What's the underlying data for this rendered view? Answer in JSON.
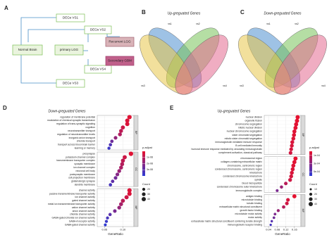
{
  "diagram": {
    "panel": "A",
    "nodes": [
      "Normal Brain",
      "primary LGG",
      "DEGs VS1",
      "DEGs VS2",
      "Recurrent LGG",
      "Secondary GBM",
      "DEGs VS4",
      "DEGs VS3"
    ]
  },
  "venns": [
    {
      "panel": "B",
      "title": "Up-greguated Genes",
      "sets": [
        "vs1",
        "vs2",
        "vs3",
        "vs4"
      ]
    },
    {
      "panel": "C",
      "title": "Down-greguated Genes",
      "sets": [
        "vs1",
        "vs2",
        "vs3",
        "vs4"
      ]
    }
  ],
  "chart_data": [
    {
      "type": "dotplot",
      "panel": "D",
      "title": "Down-greguated Genes",
      "x_label": "GeneRatio",
      "xlim": [
        0.03,
        0.13
      ],
      "xticks": [
        {
          "value": 0.05,
          "label": "0.05"
        },
        {
          "value": 0.1,
          "label": "0.10"
        }
      ],
      "color_legend_title": "p.adjust",
      "plim": [
        0,
        4e-08
      ],
      "pticks": [
        {
          "value": 1e-08,
          "label": "1e-08"
        },
        {
          "value": 2e-08,
          "label": "2e-08"
        },
        {
          "value": 3e-08,
          "label": "3e-08"
        }
      ],
      "color_low": "#e8112d",
      "color_high": "#2b3bd6",
      "size_legend_title": "Count",
      "size_ticks": [
        20,
        30,
        40
      ],
      "size_max": 45,
      "facets": [
        {
          "name": "BP",
          "categories": [
            "regulation of membrane potential",
            "modulation of chemical synaptic transmission",
            "regulation of trans-synaptic signaling",
            "cognition",
            "neurotransmitter transport",
            "regulation of neurotransmitter levels",
            "inorganic anion transport",
            "chloride transport",
            "transport across blood-brain barrier",
            "learning or memory"
          ],
          "values": [
            0.118,
            0.112,
            0.112,
            0.1,
            0.095,
            0.092,
            0.08,
            0.07,
            0.066,
            0.062
          ],
          "counts": [
            42,
            40,
            40,
            36,
            34,
            33,
            29,
            25,
            24,
            22
          ],
          "p_adjust": [
            2e-09,
            3e-09,
            3e-09,
            6e-09,
            9e-09,
            1.2e-08,
            1.8e-08,
            2.6e-08,
            3.2e-08,
            3.6e-08
          ]
        },
        {
          "name": "CC",
          "categories": [
            "presynapse",
            "potassium channel complex",
            "transmembrane transporter complex",
            "synaptic membrane",
            "ion channel complex",
            "neuronal cell body",
            "postsynaptic membrane",
            "cell projection membrane",
            "glutamatergic synapse",
            "dendrite membrane"
          ],
          "values": [
            0.122,
            0.105,
            0.1,
            0.098,
            0.095,
            0.09,
            0.085,
            0.08,
            0.072,
            0.066
          ],
          "counts": [
            44,
            38,
            36,
            35,
            34,
            32,
            30,
            29,
            26,
            24
          ],
          "p_adjust": [
            2e-09,
            6e-09,
            9e-09,
            1.1e-08,
            1.3e-08,
            1.7e-08,
            2.1e-08,
            2.5e-08,
            2.9e-08,
            3.4e-08
          ]
        },
        {
          "name": "MF",
          "categories": [
            "channel activity",
            "passive transmembrane transporter activity",
            "ion channel activity",
            "gated channel activity",
            "metal ion transmembrane transporter activity",
            "cation channel activity",
            "anion channel activity",
            "chloride channel activity",
            "GABA-gated chloride ion channel activity",
            "GABA-A receptor activity",
            "GABA-gated channel activity"
          ],
          "values": [
            0.118,
            0.118,
            0.11,
            0.1,
            0.095,
            0.09,
            0.078,
            0.065,
            0.058,
            0.055,
            0.052
          ],
          "counts": [
            42,
            42,
            39,
            36,
            34,
            32,
            28,
            23,
            21,
            20,
            19
          ],
          "p_adjust": [
            3e-09,
            3e-09,
            6e-09,
            1e-08,
            1.4e-08,
            1.8e-08,
            2.4e-08,
            3e-08,
            3.4e-08,
            3.7e-08,
            3.9e-08
          ]
        }
      ]
    },
    {
      "type": "dotplot",
      "panel": "E",
      "title": "Up-greguated Genes",
      "x_label": "GeneRatio",
      "xlim": [
        0.02,
        0.19
      ],
      "xticks": [
        {
          "value": 0.04,
          "label": "0.04"
        },
        {
          "value": 0.08,
          "label": "0.08"
        },
        {
          "value": 0.12,
          "label": "0.12"
        },
        {
          "value": 0.16,
          "label": "0.16"
        }
      ],
      "color_legend_title": "p.adjust",
      "plim": [
        0,
        0.0006
      ],
      "pticks": [
        {
          "value": 0.0001,
          "label": "1e-04"
        },
        {
          "value": 0.0003,
          "label": "3e-04"
        },
        {
          "value": 0.0005,
          "label": "5e-04"
        }
      ],
      "color_low": "#e8112d",
      "color_high": "#2b3bd6",
      "size_legend_title": "Count",
      "size_ticks": [
        10,
        20,
        30,
        40
      ],
      "size_max": 45,
      "facets": [
        {
          "name": "BP",
          "categories": [
            "nuclear division",
            "organelle fission",
            "chromosome segregation",
            "mitotic nuclear division",
            "nuclear chromosome segregation",
            "sister chromatid segregation",
            "mitotic sister chromatid segregation",
            "immunoglobulin mediated immune response",
            "B cell mediated immunity",
            "humoral immune response mediated by circulating immunoglobulin",
            "complement activation, classical pathway"
          ],
          "values": [
            0.175,
            0.172,
            0.168,
            0.165,
            0.16,
            0.158,
            0.155,
            0.15,
            0.148,
            0.145,
            0.142
          ],
          "counts": [
            40,
            39,
            38,
            37,
            36,
            35,
            34,
            33,
            32,
            31,
            30
          ],
          "p_adjust": [
            1e-05,
            1e-05,
            2e-05,
            2e-05,
            3e-05,
            3e-05,
            4e-05,
            5e-05,
            5e-05,
            6e-05,
            7e-05
          ]
        },
        {
          "name": "CC",
          "categories": [
            "chromosomal region",
            "collagen-containing extracellular matrix",
            "chromosome, centromeric region",
            "condensed chromosome, centromeric region",
            "kinetochore",
            "condensed chromosome kinetochore",
            "spindle",
            "blood microparticle",
            "condensed chromosome outer kinetochore",
            "immunoglobulin complex"
          ],
          "values": [
            0.165,
            0.16,
            0.155,
            0.152,
            0.148,
            0.145,
            0.14,
            0.12,
            0.1,
            0.08
          ],
          "counts": [
            38,
            37,
            36,
            35,
            34,
            33,
            32,
            28,
            23,
            18
          ],
          "p_adjust": [
            1e-05,
            2e-05,
            3e-05,
            4e-05,
            5e-05,
            6e-05,
            8e-05,
            0.00015,
            0.00025,
            0.00035
          ]
        },
        {
          "name": "MF",
          "categories": [
            "antigen binding",
            "microtubule binding",
            "tubulin binding",
            "extracellular matrix structural constituent",
            "growth factor binding",
            "microtubule motor activity",
            "motor activity",
            "extracellular matrix structural constituent conferring tensile strength",
            "immunoglobulin receptor binding"
          ],
          "values": [
            0.16,
            0.13,
            0.125,
            0.11,
            0.085,
            0.07,
            0.065,
            0.055,
            0.05
          ],
          "counts": [
            37,
            30,
            29,
            25,
            20,
            16,
            15,
            13,
            12
          ],
          "p_adjust": [
            1e-05,
            6e-05,
            8e-05,
            0.00016,
            0.00026,
            0.00034,
            0.00038,
            0.00046,
            0.00052
          ]
        }
      ]
    }
  ]
}
